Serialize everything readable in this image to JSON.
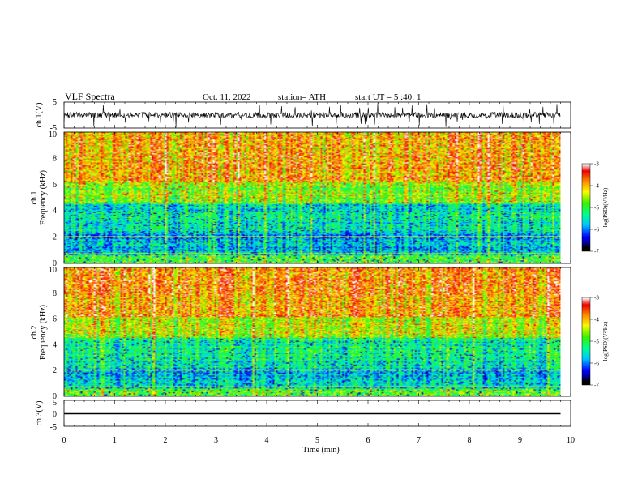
{
  "header": {
    "title": "VLF  Spectra",
    "date": "Oct. 11, 2022",
    "station": "station= ATH",
    "start": "start  UT  =    5  :40: 1"
  },
  "chart_data": [
    {
      "type": "line",
      "name": "ch1-waveform",
      "ylabel": "ch.1(V)",
      "ylim": [
        -5,
        5
      ],
      "yticks": [
        "5",
        "-5"
      ],
      "xlim": [
        0,
        10
      ],
      "trace_span": [
        0,
        9.8
      ],
      "baseline": 0.0,
      "amplitude": 2.2
    },
    {
      "type": "heatmap",
      "name": "ch1-spectrogram",
      "ylabel_line1": "ch.1",
      "ylabel_line2": "Frequency  (kHz)",
      "ylim": [
        0,
        10
      ],
      "yticks": [
        "0",
        "2",
        "4",
        "6",
        "8",
        "10"
      ],
      "xlim": [
        0,
        10
      ],
      "data_span": [
        0,
        9.8
      ],
      "colorbar": {
        "label": "log(PSD)(V²/Hz)",
        "range": [
          -7,
          -3
        ],
        "ticks": [
          "-3",
          "-4",
          "-5",
          "-6",
          "-7"
        ]
      }
    },
    {
      "type": "heatmap",
      "name": "ch2-spectrogram",
      "ylabel_line1": "ch.2",
      "ylabel_line2": "Frequency  (kHz)",
      "ylim": [
        0,
        10
      ],
      "yticks": [
        "0",
        "2",
        "4",
        "6",
        "8",
        "10"
      ],
      "xlim": [
        0,
        10
      ],
      "data_span": [
        0,
        9.8
      ],
      "colorbar": {
        "label": "log(PSD)(V²/Hz)",
        "range": [
          -7,
          -3
        ],
        "ticks": [
          "-3",
          "-4",
          "-5",
          "-6",
          "-7"
        ]
      }
    },
    {
      "type": "line",
      "name": "ch3-waveform",
      "ylabel": "ch.3(V)",
      "ylim": [
        -5,
        5
      ],
      "yticks": [
        "5",
        "0",
        "-5"
      ],
      "xlim": [
        0,
        10
      ],
      "trace_span": [
        0,
        9.8
      ],
      "baseline": 0.0,
      "amplitude": 0.3
    }
  ],
  "x_axis": {
    "label": "Time  (min)",
    "ticks": [
      "0",
      "1",
      "2",
      "3",
      "4",
      "5",
      "6",
      "7",
      "8",
      "9",
      "10"
    ]
  },
  "colors": {
    "trace": "#000000",
    "frame": "#000000",
    "low": "#000000",
    "high": "#ffffff"
  }
}
